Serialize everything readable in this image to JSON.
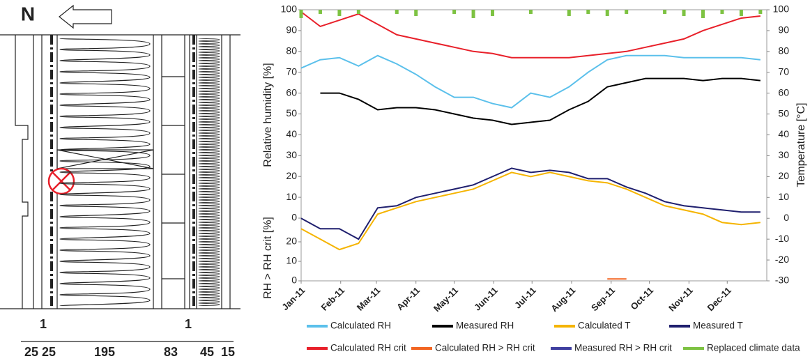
{
  "diagram": {
    "north": "N",
    "dimensions_top": [
      "1",
      "1"
    ],
    "dimensions": [
      "25",
      "25",
      "195",
      "83",
      "45",
      "15"
    ]
  },
  "chart_data": {
    "type": "line",
    "y_label": "Relative humidity [%]",
    "y3_label": "RH > RH crit [%]",
    "y2_label": "Temperature [°C]",
    "x": [
      0,
      15,
      30,
      45,
      60,
      75,
      90,
      105,
      120,
      135,
      150,
      165,
      180,
      195,
      210,
      225,
      240,
      255,
      270,
      285,
      300,
      315,
      330,
      345,
      360
    ],
    "xlim": [
      0,
      365
    ],
    "xticks": [
      {
        "value": 0,
        "label": "Jan-11"
      },
      {
        "value": 31,
        "label": "Feb-11"
      },
      {
        "value": 59,
        "label": "Mar-11"
      },
      {
        "value": 90,
        "label": "Apr-11"
      },
      {
        "value": 120,
        "label": "May-11"
      },
      {
        "value": 151,
        "label": "Jun-11"
      },
      {
        "value": 181,
        "label": "Jul-11"
      },
      {
        "value": 212,
        "label": "Aug-11"
      },
      {
        "value": 243,
        "label": "Sep-11"
      },
      {
        "value": 273,
        "label": "Oct-11"
      },
      {
        "value": 304,
        "label": "Nov-11"
      },
      {
        "value": 334,
        "label": "Dec-11"
      }
    ],
    "ylim": [
      0,
      100
    ],
    "yticks": [
      0,
      10,
      20,
      30,
      40,
      50,
      60,
      70,
      80,
      90,
      100
    ],
    "y3lim": [
      0,
      32
    ],
    "y3ticks": [
      0,
      10,
      20
    ],
    "y2lim": [
      -30,
      100
    ],
    "y2ticks": [
      -30,
      -20,
      -10,
      0,
      10,
      20,
      30,
      40,
      50,
      60,
      70,
      80,
      90,
      100
    ],
    "series": [
      {
        "name": "Calculated RH",
        "color": "#5bc0eb",
        "values": [
          72,
          76,
          77,
          73,
          78,
          74,
          69,
          63,
          58,
          58,
          55,
          53,
          60,
          58,
          63,
          70,
          76,
          78,
          78,
          78,
          77,
          77,
          77,
          77,
          76
        ]
      },
      {
        "name": "Measured RH",
        "color": "#000000",
        "values": [
          null,
          60,
          60,
          57,
          52,
          53,
          53,
          52,
          50,
          48,
          47,
          45,
          46,
          47,
          52,
          56,
          63,
          65,
          67,
          67,
          67,
          66,
          67,
          67,
          66
        ]
      },
      {
        "name": "Calculated T",
        "color": "#f5b400",
        "axis": "y2",
        "values": [
          -5,
          -10,
          -15,
          -12,
          2,
          5,
          8,
          10,
          12,
          14,
          18,
          22,
          20,
          22,
          20,
          18,
          17,
          14,
          10,
          6,
          4,
          2,
          -2,
          -3,
          -2
        ]
      },
      {
        "name": "Measured T",
        "color": "#1f1f6e",
        "axis": "y2",
        "values": [
          0,
          -5,
          -5,
          -10,
          5,
          6,
          10,
          12,
          14,
          16,
          20,
          24,
          22,
          23,
          22,
          19,
          19,
          15,
          12,
          8,
          6,
          5,
          4,
          3,
          3
        ]
      },
      {
        "name": "Calculated RH crit",
        "color": "#e8202a",
        "values": [
          99,
          92,
          95,
          98,
          93,
          88,
          86,
          84,
          82,
          80,
          79,
          77,
          77,
          77,
          77,
          78,
          79,
          80,
          82,
          84,
          86,
          90,
          93,
          96,
          97
        ]
      },
      {
        "name": "Calculated RH > RH crit",
        "color": "#f26522",
        "axis": "y3",
        "values": [
          null,
          null,
          null,
          null,
          null,
          null,
          null,
          null,
          null,
          null,
          null,
          null,
          null,
          null,
          null,
          null,
          1,
          1,
          null,
          null,
          null,
          null,
          null,
          null,
          null
        ]
      },
      {
        "name": "Measured RH > RH crit",
        "color": "#3f3fa0",
        "axis": "y3",
        "values": [
          null,
          null,
          null,
          null,
          null,
          null,
          null,
          null,
          null,
          null,
          null,
          null,
          null,
          null,
          null,
          null,
          null,
          null,
          null,
          null,
          null,
          null,
          null,
          null,
          null
        ]
      },
      {
        "name": "Replaced climate data",
        "color": "#7dc242",
        "style": "bars",
        "values": [
          96,
          98,
          97,
          98,
          null,
          98,
          97,
          null,
          98,
          96,
          97,
          null,
          98,
          null,
          97,
          98,
          97,
          98,
          null,
          98,
          97,
          96,
          98,
          97,
          98
        ]
      }
    ]
  }
}
